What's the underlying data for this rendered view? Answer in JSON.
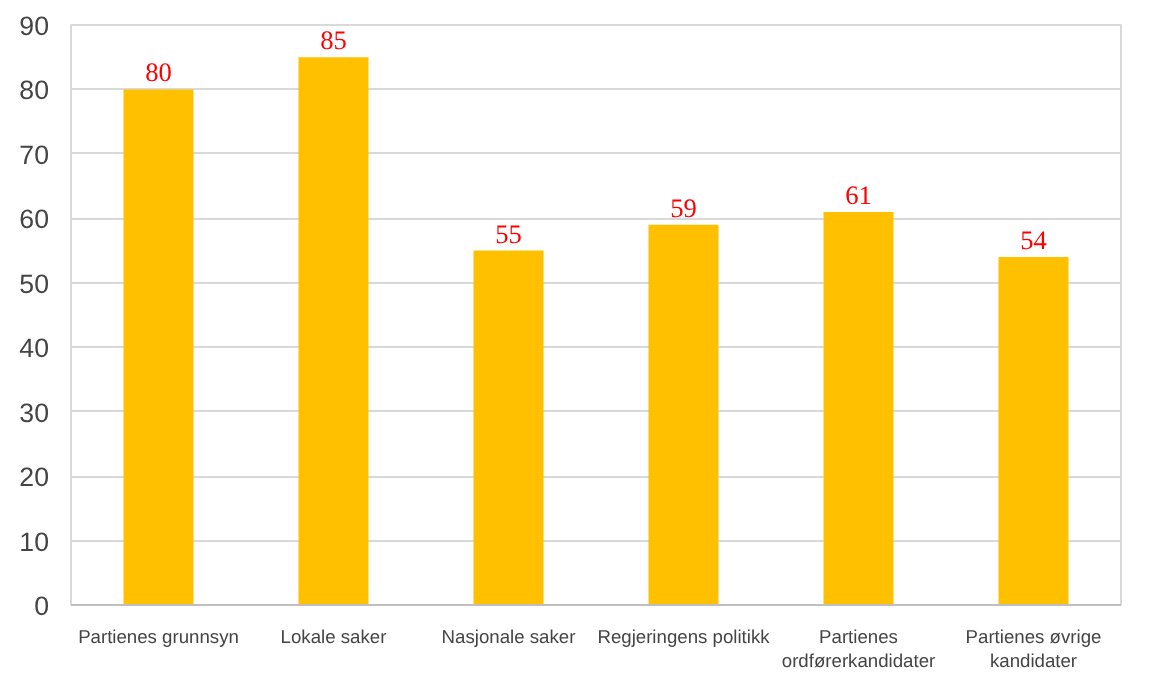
{
  "chart_data": {
    "type": "bar",
    "categories": [
      "Partienes grunnsyn",
      "Lokale saker",
      "Nasjonale saker",
      "Regjeringens politikk",
      "Partienes ordførerkandidater",
      "Partienes øvrige kandidater"
    ],
    "values": [
      80,
      85,
      55,
      59,
      61,
      54
    ],
    "color": "#ffc000",
    "data_labels": true,
    "ylim": [
      0,
      90
    ],
    "yticks": [
      0,
      10,
      20,
      30,
      40,
      50,
      60,
      70,
      80,
      90
    ],
    "grid": "y"
  }
}
